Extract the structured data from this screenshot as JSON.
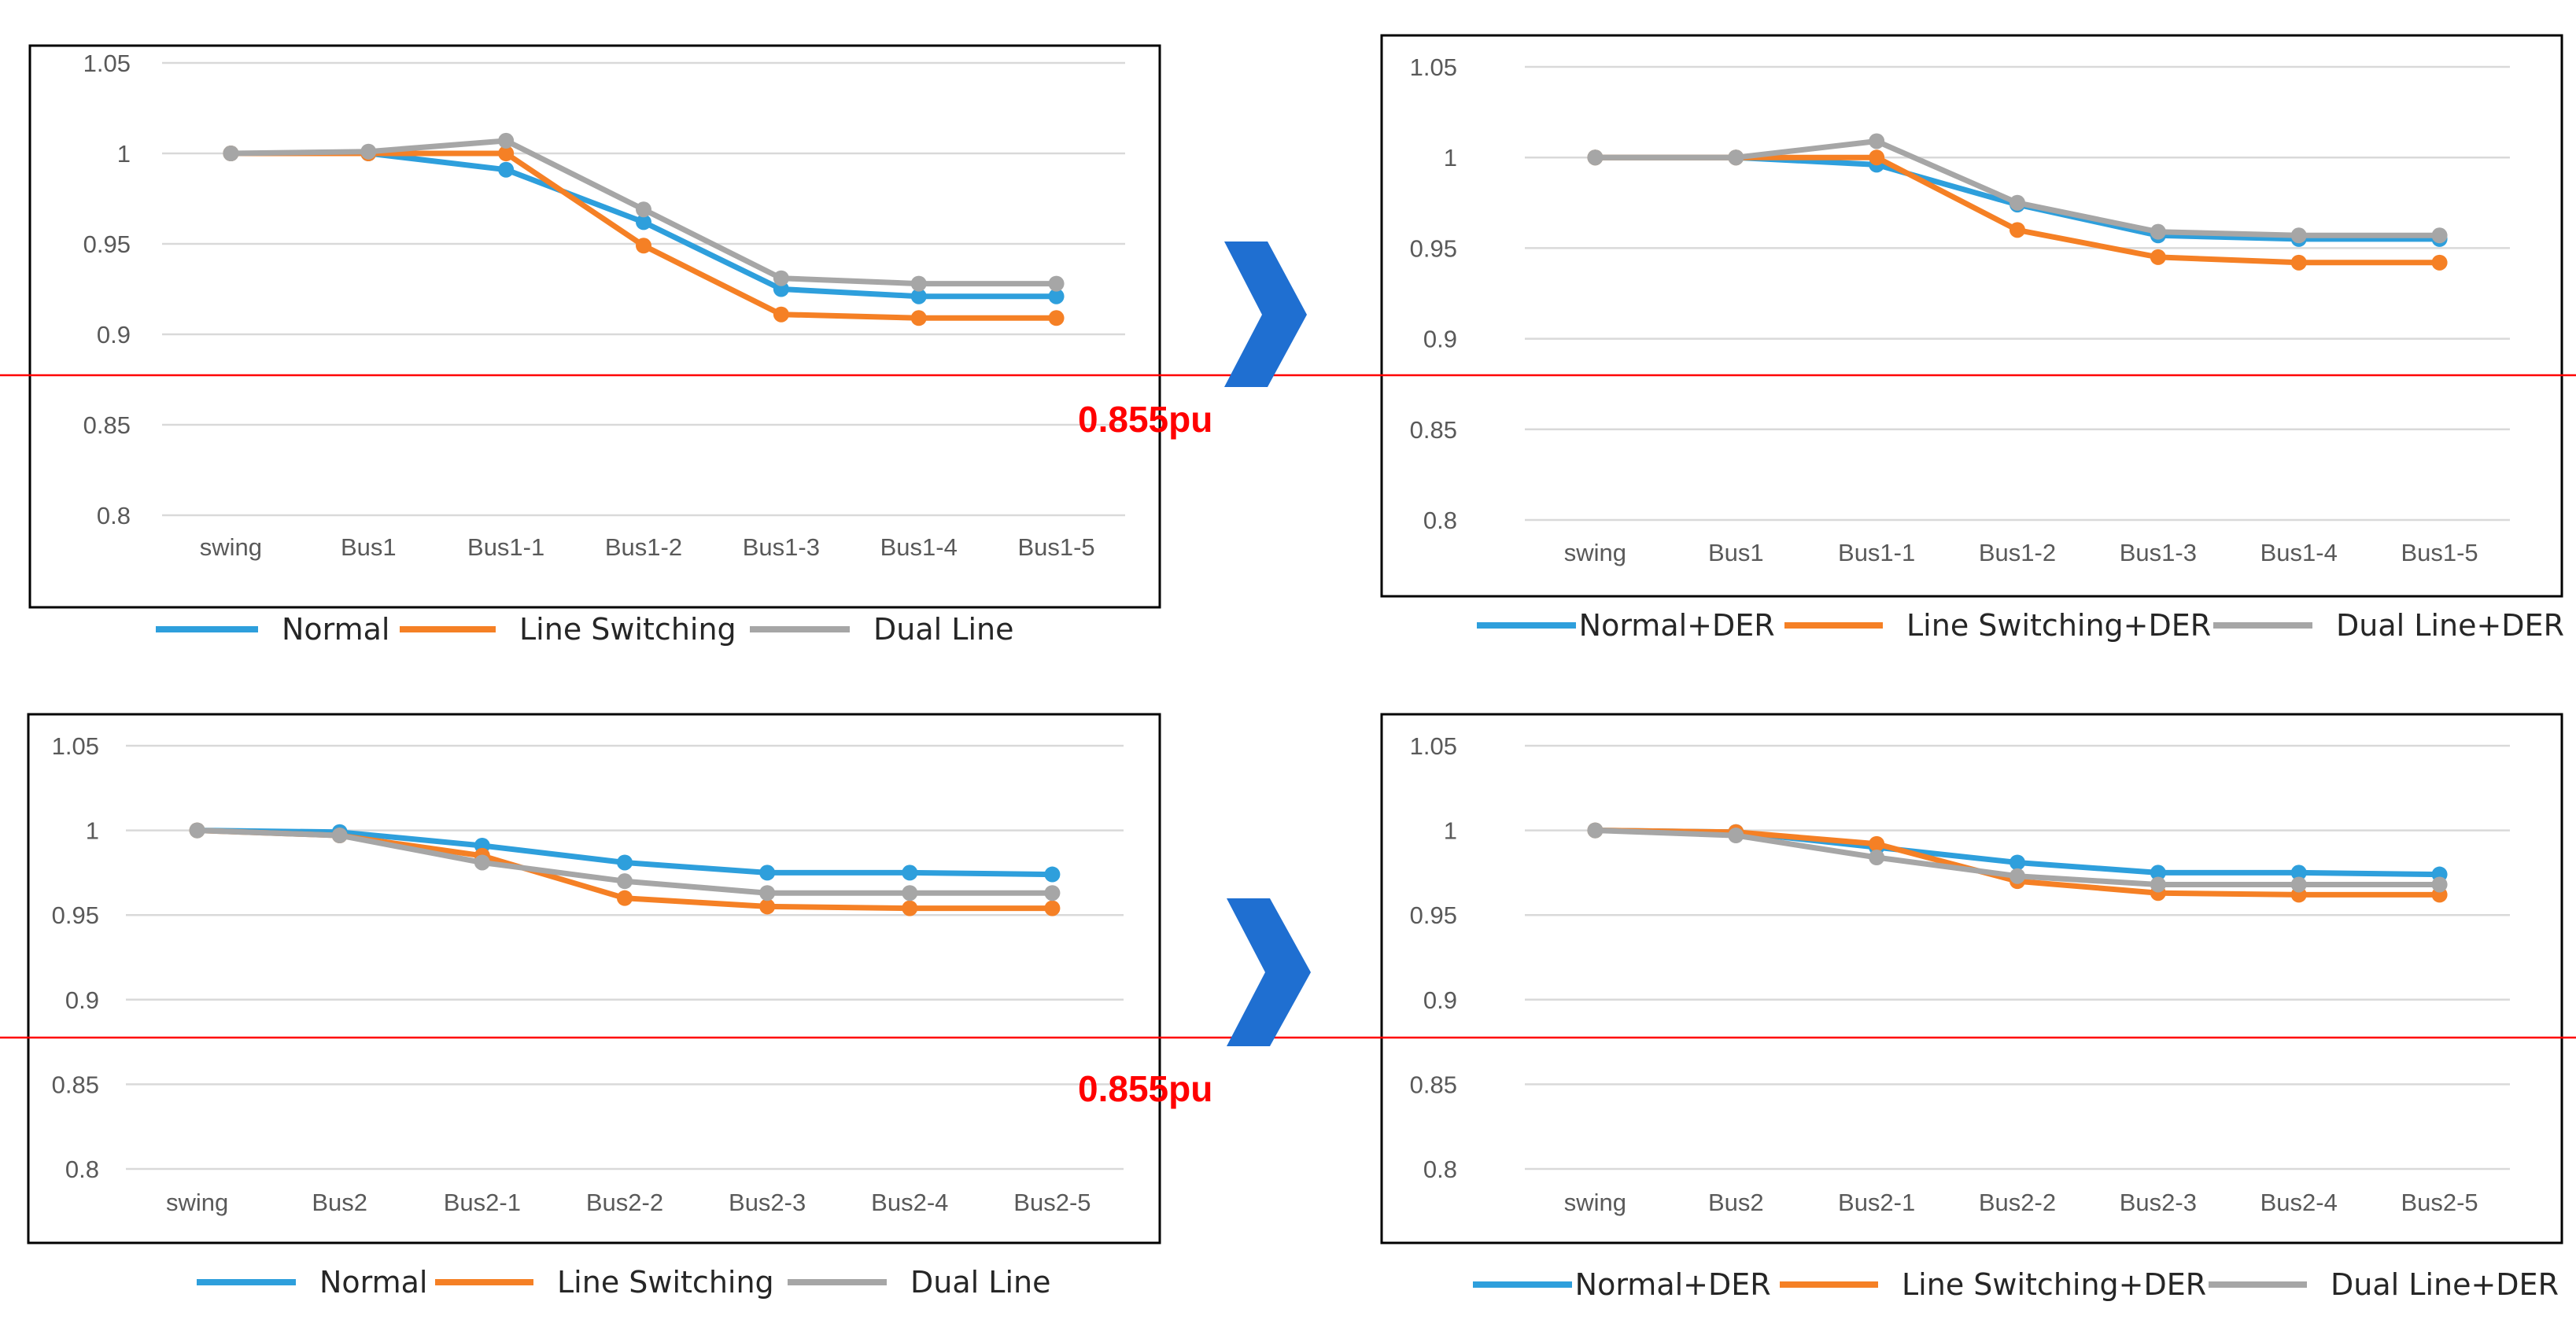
{
  "colors": {
    "normal": "#2e9fdc",
    "line_switching": "#f58025",
    "dual_line": "#a6a6a6",
    "threshold": "#ff0000",
    "arrow": "#1f6fd1"
  },
  "annotations": {
    "threshold_label_top": "0.855pu",
    "threshold_label_bottom": "0.855pu"
  },
  "arrows": [
    "chevron-right-icon",
    "chevron-right-icon"
  ],
  "chart_data": [
    {
      "id": "top-left",
      "type": "line",
      "categories": [
        "swing",
        "Bus1",
        "Bus1-1",
        "Bus1-2",
        "Bus1-3",
        "Bus1-4",
        "Bus1-5"
      ],
      "ylim": [
        0.8,
        1.05
      ],
      "yticks": [
        "1.05",
        "1",
        "0.95",
        "0.9",
        "0.85",
        "0.8"
      ],
      "series": [
        {
          "name": "Normal",
          "color_key": "normal",
          "values": [
            1.0,
            1.0,
            0.991,
            0.962,
            0.925,
            0.921,
            0.921
          ]
        },
        {
          "name": "Line Switching",
          "color_key": "line_switching",
          "values": [
            1.0,
            1.0,
            1.0,
            0.949,
            0.911,
            0.909,
            0.909
          ]
        },
        {
          "name": "Dual Line",
          "color_key": "dual_line",
          "values": [
            1.0,
            1.001,
            1.007,
            0.969,
            0.931,
            0.928,
            0.928
          ]
        }
      ]
    },
    {
      "id": "top-right",
      "type": "line",
      "categories": [
        "swing",
        "Bus1",
        "Bus1-1",
        "Bus1-2",
        "Bus1-3",
        "Bus1-4",
        "Bus1-5"
      ],
      "ylim": [
        0.8,
        1.05
      ],
      "yticks": [
        "1.05",
        "1",
        "0.95",
        "0.9",
        "0.85",
        "0.8"
      ],
      "series": [
        {
          "name": "Normal+DER",
          "color_key": "normal",
          "values": [
            1.0,
            1.0,
            0.996,
            0.974,
            0.957,
            0.955,
            0.955
          ]
        },
        {
          "name": "Line Switching+DER",
          "color_key": "line_switching",
          "values": [
            1.0,
            1.0,
            1.0,
            0.96,
            0.945,
            0.942,
            0.942
          ]
        },
        {
          "name": "Dual Line+DER",
          "color_key": "dual_line",
          "values": [
            1.0,
            1.0,
            1.009,
            0.975,
            0.959,
            0.957,
            0.957
          ]
        }
      ]
    },
    {
      "id": "bottom-left",
      "type": "line",
      "categories": [
        "swing",
        "Bus2",
        "Bus2-1",
        "Bus2-2",
        "Bus2-3",
        "Bus2-4",
        "Bus2-5"
      ],
      "ylim": [
        0.8,
        1.05
      ],
      "yticks": [
        "1.05",
        "1",
        "0.95",
        "0.9",
        "0.85",
        "0.8"
      ],
      "series": [
        {
          "name": "Normal",
          "color_key": "normal",
          "values": [
            1.0,
            0.999,
            0.991,
            0.981,
            0.975,
            0.975,
            0.974
          ]
        },
        {
          "name": "Line Switching",
          "color_key": "line_switching",
          "values": [
            1.0,
            0.997,
            0.985,
            0.96,
            0.955,
            0.954,
            0.954
          ]
        },
        {
          "name": "Dual Line",
          "color_key": "dual_line",
          "values": [
            1.0,
            0.997,
            0.981,
            0.97,
            0.963,
            0.963,
            0.963
          ]
        }
      ]
    },
    {
      "id": "bottom-right",
      "type": "line",
      "categories": [
        "swing",
        "Bus2",
        "Bus2-1",
        "Bus2-2",
        "Bus2-3",
        "Bus2-4",
        "Bus2-5"
      ],
      "ylim": [
        0.8,
        1.05
      ],
      "yticks": [
        "1.05",
        "1",
        "0.95",
        "0.9",
        "0.85",
        "0.8"
      ],
      "series": [
        {
          "name": "Normal+DER",
          "color_key": "normal",
          "values": [
            1.0,
            0.999,
            0.99,
            0.981,
            0.975,
            0.975,
            0.974
          ]
        },
        {
          "name": "Line Switching+DER",
          "color_key": "line_switching",
          "values": [
            1.0,
            0.999,
            0.992,
            0.97,
            0.963,
            0.962,
            0.962
          ]
        },
        {
          "name": "Dual Line+DER",
          "color_key": "dual_line",
          "values": [
            1.0,
            0.997,
            0.984,
            0.973,
            0.968,
            0.968,
            0.968
          ]
        }
      ]
    }
  ]
}
